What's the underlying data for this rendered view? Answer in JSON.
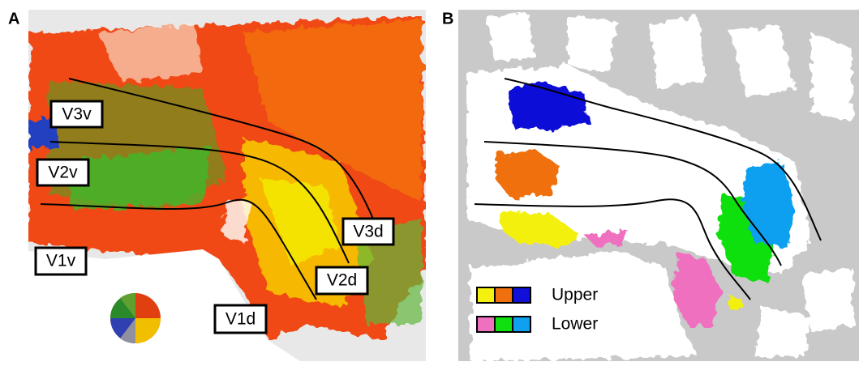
{
  "panels": [
    {
      "label": "A",
      "areas": [
        "V3v",
        "V2v",
        "V1v",
        "V3d",
        "V2d",
        "V1d"
      ]
    },
    {
      "label": "B",
      "legend": [
        "Upper",
        "Lower"
      ]
    }
  ]
}
